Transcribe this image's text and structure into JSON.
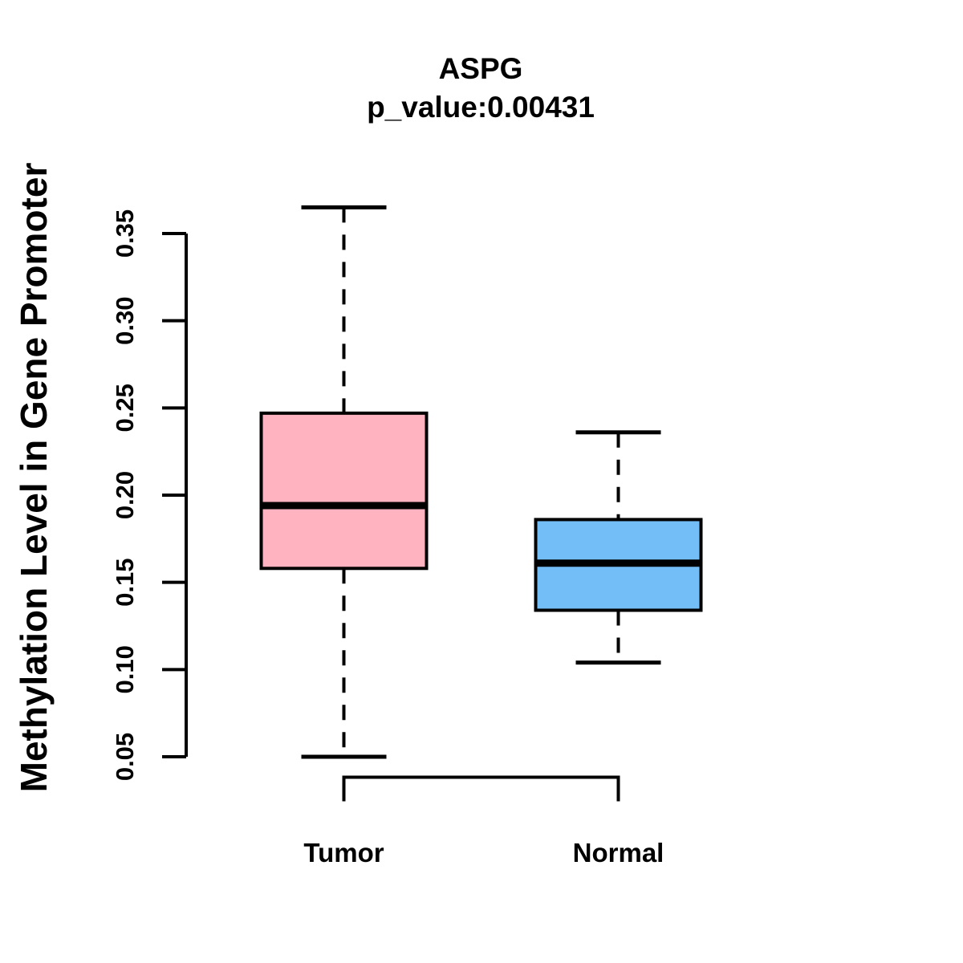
{
  "chart_data": {
    "type": "boxplot",
    "title": "ASPG",
    "subtitle": "p_value:0.00431",
    "ylabel": "Methylation Level in Gene Promoter",
    "categories": [
      "Tumor",
      "Normal"
    ],
    "y_axis": {
      "min": 0.05,
      "max": 0.35,
      "tick_step": 0.05,
      "tick_labels": [
        "0.05",
        "0.10",
        "0.15",
        "0.20",
        "0.25",
        "0.30",
        "0.35"
      ]
    },
    "series": [
      {
        "name": "Tumor",
        "fill_color": "#FFB3C1",
        "whisker_low": 0.05,
        "q1": 0.158,
        "median": 0.194,
        "q3": 0.247,
        "whisker_high": 0.365
      },
      {
        "name": "Normal",
        "fill_color": "#74BEF8",
        "whisker_low": 0.104,
        "q1": 0.134,
        "median": 0.161,
        "q3": 0.186,
        "whisker_high": 0.236
      }
    ],
    "style": {
      "stroke_color": "#000000",
      "background": "#ffffff",
      "whisker_style": "dashed",
      "legend": "none",
      "grid": false
    }
  }
}
